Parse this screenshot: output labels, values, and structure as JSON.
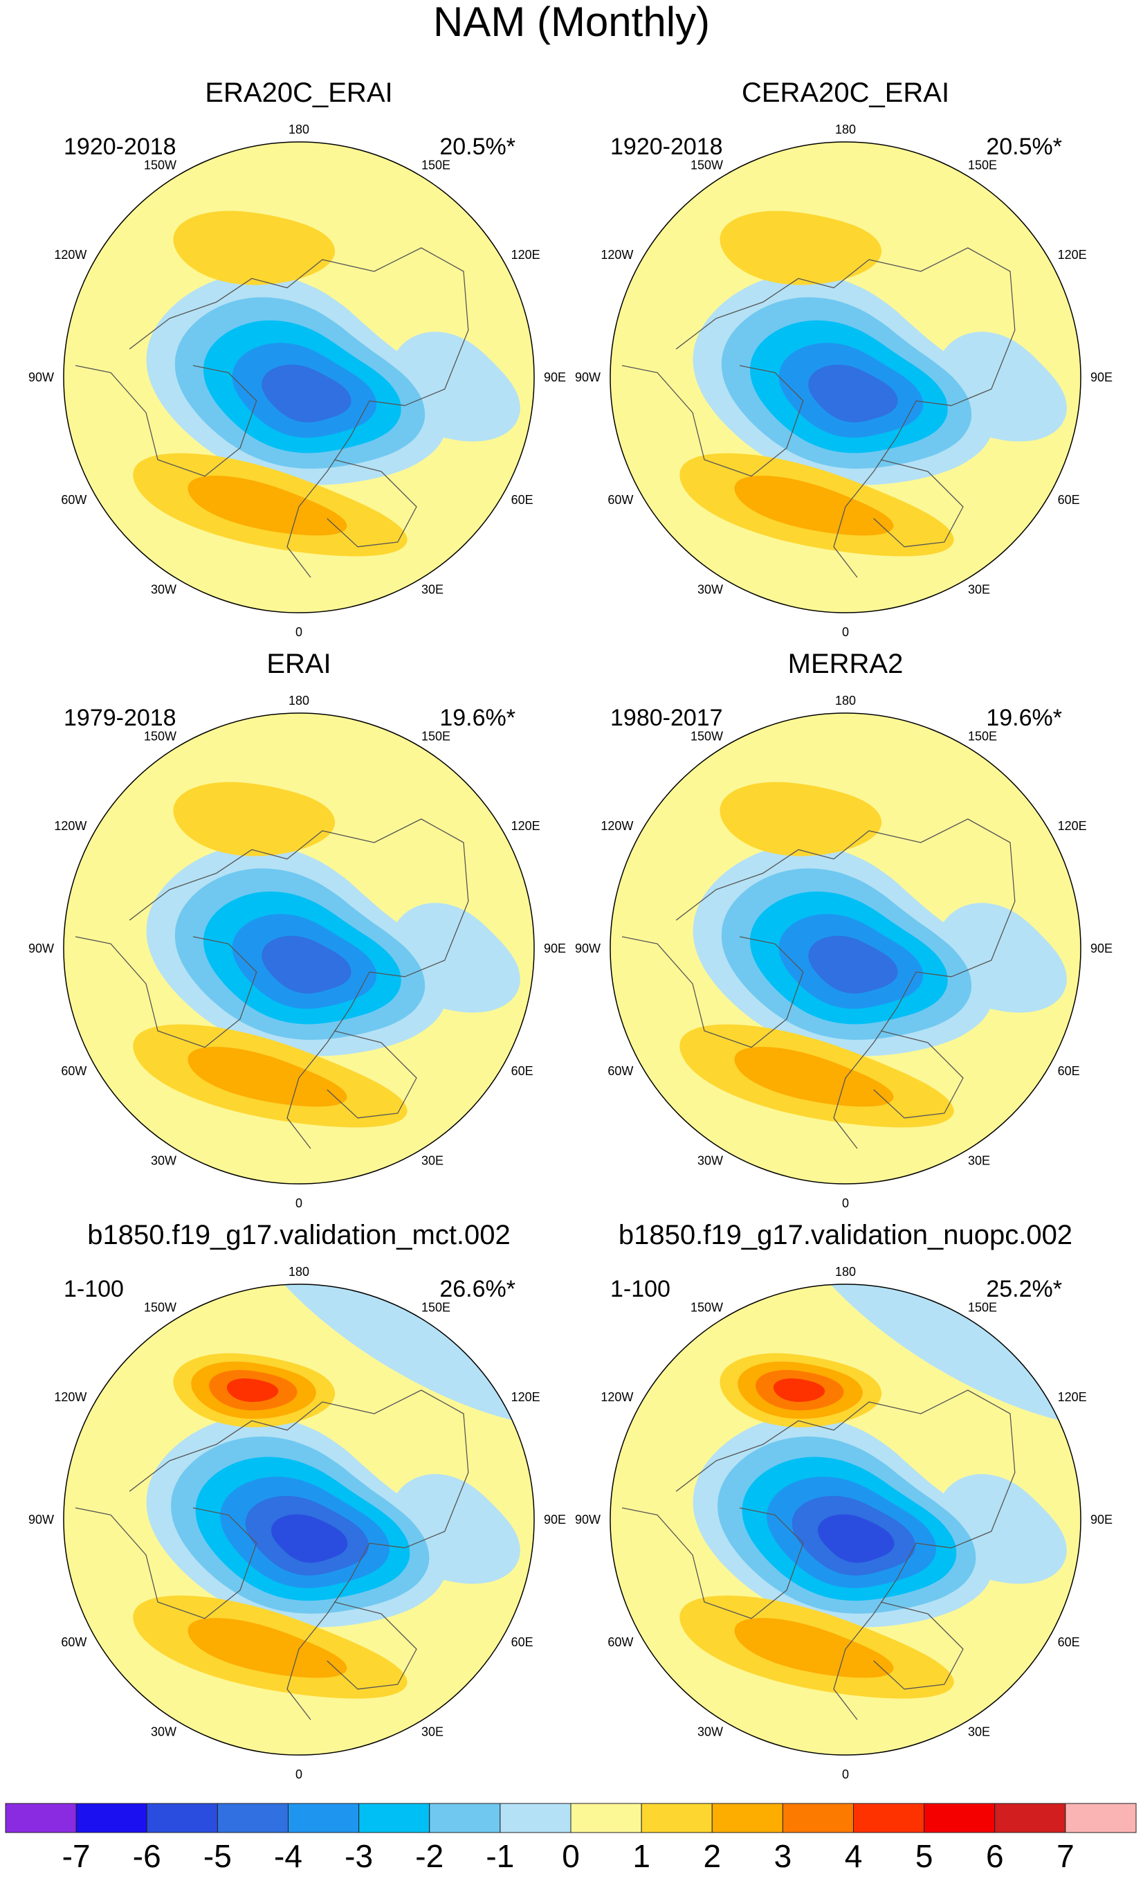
{
  "chart_data": {
    "type": "polar-contour-map",
    "title": "NAM (Monthly)",
    "projection": "north-polar-stereographic",
    "longitude_labels": [
      "180",
      "150E",
      "120E",
      "90E",
      "60E",
      "30E",
      "0",
      "30W",
      "60W",
      "90W",
      "120W",
      "150W"
    ],
    "panels": [
      {
        "name": "ERA20C_ERAI",
        "period": "1920-2018",
        "variance": "20.5%*",
        "centers": [
          {
            "feature": "arctic-low",
            "min_level": -5
          },
          {
            "feature": "atlantic-high",
            "max_level": 2
          },
          {
            "feature": "pacific-high",
            "max_level": 1
          }
        ]
      },
      {
        "name": "CERA20C_ERAI",
        "period": "1920-2018",
        "variance": "20.5%*",
        "centers": [
          {
            "feature": "arctic-low",
            "min_level": -5
          },
          {
            "feature": "atlantic-high",
            "max_level": 2
          },
          {
            "feature": "pacific-high",
            "max_level": 1
          }
        ]
      },
      {
        "name": "ERAI",
        "period": "1979-2018",
        "variance": "19.6%*",
        "centers": [
          {
            "feature": "arctic-low",
            "min_level": -5
          },
          {
            "feature": "atlantic-high",
            "max_level": 2
          },
          {
            "feature": "pacific-high",
            "max_level": 1
          }
        ]
      },
      {
        "name": "MERRA2",
        "period": "1980-2017",
        "variance": "19.6%*",
        "centers": [
          {
            "feature": "arctic-low",
            "min_level": -5
          },
          {
            "feature": "atlantic-high",
            "max_level": 2
          },
          {
            "feature": "pacific-high",
            "max_level": 1
          }
        ]
      },
      {
        "name": "b1850.f19_g17.validation_mct.002",
        "period": "1-100",
        "variance": "26.6%*",
        "centers": [
          {
            "feature": "arctic-low",
            "min_level": -6
          },
          {
            "feature": "atlantic-high",
            "max_level": 2
          },
          {
            "feature": "pacific-high",
            "max_level": 4
          }
        ]
      },
      {
        "name": "b1850.f19_g17.validation_nuopc.002",
        "period": "1-100",
        "variance": "25.2%*",
        "centers": [
          {
            "feature": "arctic-low",
            "min_level": -6
          },
          {
            "feature": "atlantic-high",
            "max_level": 2
          },
          {
            "feature": "pacific-high",
            "max_level": 4
          }
        ]
      }
    ],
    "colorbar": {
      "labels": [
        "-7",
        "-6",
        "-5",
        "-4",
        "-3",
        "-2",
        "-1",
        "0",
        "1",
        "2",
        "3",
        "4",
        "5",
        "6",
        "7"
      ],
      "colors": [
        "#8a2be2",
        "#1a10f0",
        "#2a4de0",
        "#3070e0",
        "#1e96f0",
        "#00bff5",
        "#70c8f0",
        "#b4e1f5",
        "#fdf896",
        "#fdd630",
        "#fdac00",
        "#fd7a00",
        "#fd3200",
        "#f50000",
        "#d21e1e",
        "#fab4b4"
      ]
    }
  }
}
